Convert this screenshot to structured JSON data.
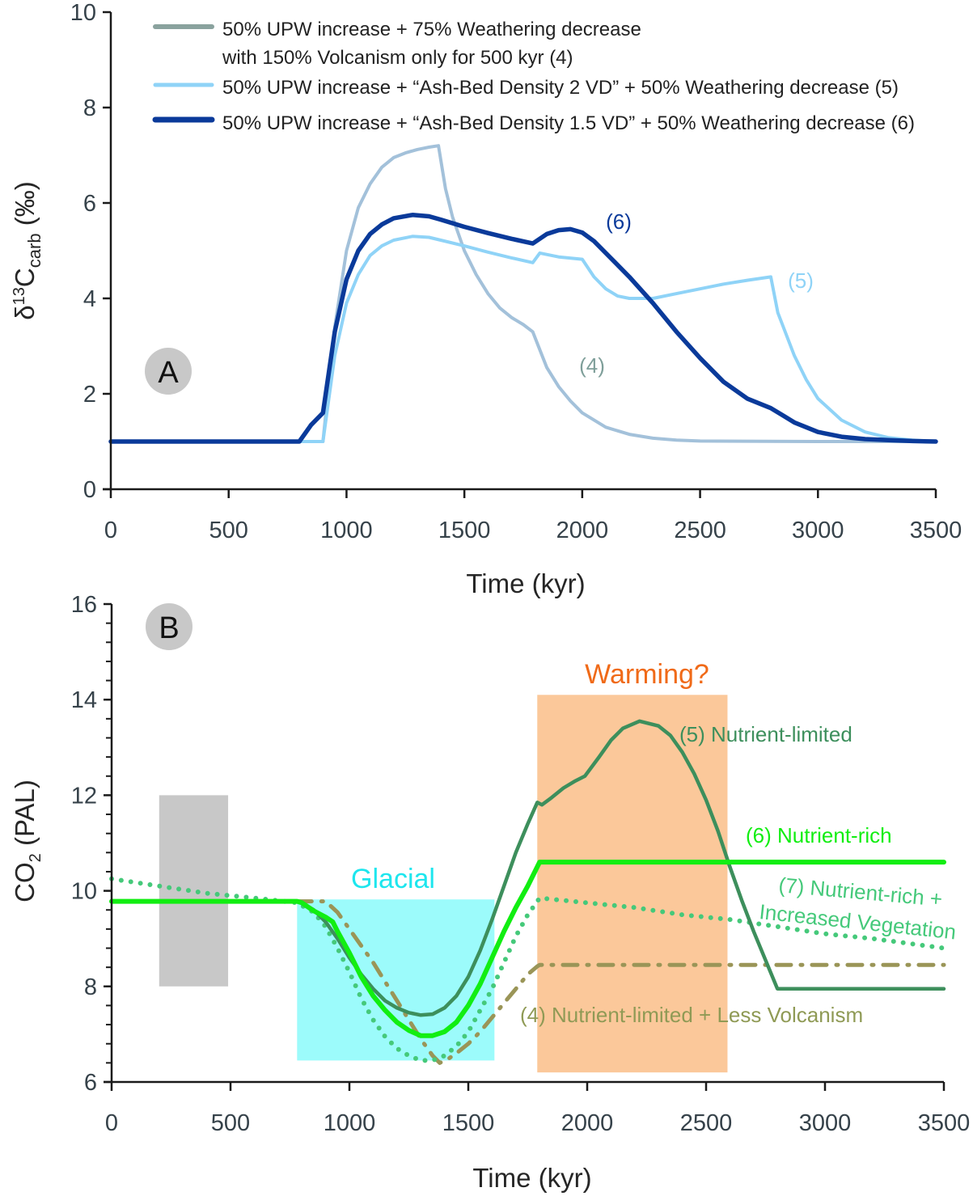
{
  "chart_data": [
    {
      "panel": "A",
      "type": "line",
      "xlabel": "Time (kyr)",
      "ylabel_main": "δ",
      "ylabel_sup": "13",
      "ylabel_c": "C",
      "ylabel_sub": "carb",
      "ylabel_unit": " (‰)",
      "xlim": [
        0,
        3500
      ],
      "ylim": [
        0,
        10
      ],
      "xticks": [
        0,
        500,
        1000,
        1500,
        2000,
        2500,
        3000,
        3500
      ],
      "yticks": [
        0,
        2,
        4,
        6,
        8,
        10
      ],
      "grid": false,
      "legend_position": "top",
      "series": [
        {
          "name": "50% UPW increase + 75% Weathering decrease with 150% Volcanism only for 500 kyr (4)",
          "legend_line1": "50% UPW increase + 75% Weathering decrease",
          "legend_line2": "with 150% Volcanism only for 500 kyr (4)",
          "legend_color": "#8aa29e",
          "color": "#a3c1da",
          "label": "(4)",
          "label_color": "#7f9f9a",
          "x": [
            0,
            800,
            900,
            950,
            1000,
            1050,
            1100,
            1150,
            1200,
            1250,
            1300,
            1350,
            1390,
            1420,
            1450,
            1500,
            1550,
            1600,
            1650,
            1700,
            1750,
            1790,
            1810,
            1850,
            1900,
            1950,
            2000,
            2100,
            2200,
            2300,
            2400,
            2500,
            3000,
            3500
          ],
          "y": [
            1.0,
            1.0,
            1.0,
            3.4,
            5.0,
            5.9,
            6.4,
            6.75,
            6.95,
            7.05,
            7.12,
            7.17,
            7.2,
            6.3,
            5.7,
            5.0,
            4.5,
            4.1,
            3.8,
            3.6,
            3.45,
            3.3,
            3.05,
            2.55,
            2.15,
            1.85,
            1.6,
            1.3,
            1.15,
            1.07,
            1.03,
            1.01,
            1.0,
            1.0
          ]
        },
        {
          "name": "50% UPW increase + “Ash-Bed Density 2 VD” + 50% Weathering decrease (5)",
          "legend_line1": "50% UPW increase + “Ash-Bed Density 2 VD” + 50% Weathering decrease (5)",
          "color": "#8fd3f7",
          "legend_color": "#8fd3f7",
          "label": "(5)",
          "label_color": "#8fd3f7",
          "x": [
            0,
            800,
            900,
            950,
            1000,
            1050,
            1100,
            1150,
            1200,
            1280,
            1350,
            1400,
            1500,
            1600,
            1700,
            1790,
            1820,
            1900,
            2000,
            2050,
            2100,
            2150,
            2200,
            2300,
            2400,
            2500,
            2600,
            2700,
            2800,
            2830,
            2900,
            2950,
            3000,
            3100,
            3200,
            3300,
            3400,
            3500
          ],
          "y": [
            1.0,
            1.0,
            1.0,
            2.8,
            3.9,
            4.5,
            4.9,
            5.1,
            5.22,
            5.3,
            5.28,
            5.22,
            5.1,
            4.97,
            4.85,
            4.75,
            4.95,
            4.87,
            4.82,
            4.45,
            4.2,
            4.05,
            4.0,
            4.0,
            4.1,
            4.2,
            4.3,
            4.38,
            4.45,
            3.7,
            2.8,
            2.3,
            1.9,
            1.45,
            1.2,
            1.08,
            1.03,
            1.0
          ]
        },
        {
          "name": "50% UPW increase + “Ash-Bed Density 1.5 VD” + 50% Weathering decrease (6)",
          "legend_line1": "50% UPW increase + “Ash-Bed Density 1.5 VD” + 50% Weathering decrease (6)",
          "color": "#0a3a9a",
          "legend_color": "#0a3a9a",
          "label": "(6)",
          "label_color": "#0a3a9a",
          "x": [
            0,
            800,
            850,
            900,
            950,
            1000,
            1050,
            1100,
            1150,
            1200,
            1280,
            1350,
            1400,
            1500,
            1600,
            1700,
            1790,
            1850,
            1900,
            1950,
            2000,
            2050,
            2100,
            2200,
            2300,
            2400,
            2500,
            2600,
            2700,
            2800,
            2850,
            2900,
            3000,
            3100,
            3200,
            3300,
            3400,
            3500
          ],
          "y": [
            1.0,
            1.0,
            1.35,
            1.6,
            3.3,
            4.4,
            5.0,
            5.35,
            5.55,
            5.68,
            5.75,
            5.72,
            5.65,
            5.5,
            5.37,
            5.25,
            5.15,
            5.35,
            5.43,
            5.45,
            5.38,
            5.2,
            4.95,
            4.45,
            3.9,
            3.3,
            2.75,
            2.25,
            1.9,
            1.7,
            1.55,
            1.4,
            1.2,
            1.1,
            1.05,
            1.03,
            1.01,
            1.0
          ]
        }
      ],
      "badge": "A"
    },
    {
      "panel": "B",
      "type": "line",
      "xlabel": "Time (kyr)",
      "ylabel_main": "CO",
      "ylabel_sub": "2",
      "ylabel_unit": " (PAL)",
      "xlim": [
        0,
        3500
      ],
      "ylim": [
        6,
        16
      ],
      "xticks": [
        0,
        500,
        1000,
        1500,
        2000,
        2500,
        3000,
        3500
      ],
      "yticks": [
        6,
        8,
        10,
        12,
        14,
        16
      ],
      "grid": false,
      "badge": "B",
      "shaded_regions": [
        {
          "name": "unlabeled-grey",
          "x": [
            200,
            490
          ],
          "y": [
            8.0,
            12.0
          ],
          "color": "#c8c8c8",
          "label": ""
        },
        {
          "name": "glacial",
          "x": [
            780,
            1610
          ],
          "y": [
            6.45,
            9.82
          ],
          "color": "#9cfbfb",
          "label": "Glacial",
          "label_color": "#1de6ee"
        },
        {
          "name": "warming",
          "x": [
            1790,
            2590
          ],
          "y": [
            6.2,
            14.1
          ],
          "color": "#fbc89a",
          "label": "Warming?",
          "label_color": "#f06a18"
        }
      ],
      "series": [
        {
          "name": "(5) Nutrient-limited",
          "color": "#3d8f5c",
          "style": "solid",
          "x": [
            0,
            780,
            800,
            850,
            900,
            950,
            1000,
            1050,
            1100,
            1150,
            1200,
            1250,
            1300,
            1350,
            1400,
            1450,
            1500,
            1550,
            1600,
            1650,
            1700,
            1750,
            1790,
            1810,
            1850,
            1900,
            1950,
            1990,
            2050,
            2100,
            2150,
            2220,
            2300,
            2350,
            2400,
            2450,
            2500,
            2550,
            2600,
            2650,
            2700,
            2750,
            2800,
            3500
          ],
          "y": [
            9.78,
            9.78,
            9.75,
            9.6,
            9.35,
            9.0,
            8.6,
            8.25,
            7.95,
            7.7,
            7.55,
            7.45,
            7.4,
            7.42,
            7.55,
            7.8,
            8.2,
            8.75,
            9.4,
            10.1,
            10.8,
            11.4,
            11.85,
            11.8,
            11.95,
            12.15,
            12.3,
            12.4,
            12.8,
            13.15,
            13.4,
            13.55,
            13.45,
            13.25,
            12.9,
            12.45,
            11.9,
            11.25,
            10.5,
            9.8,
            9.15,
            8.55,
            7.95,
            7.95
          ]
        },
        {
          "name": "(6) Nutrient-rich",
          "color": "#12ee12",
          "style": "solid",
          "x": [
            0,
            780,
            800,
            850,
            900,
            930,
            950,
            1000,
            1050,
            1100,
            1150,
            1200,
            1250,
            1300,
            1350,
            1400,
            1450,
            1500,
            1550,
            1600,
            1650,
            1700,
            1750,
            1800,
            3500
          ],
          "y": [
            9.78,
            9.78,
            9.75,
            9.58,
            9.45,
            9.35,
            9.15,
            8.7,
            8.2,
            7.8,
            7.5,
            7.25,
            7.08,
            6.97,
            6.97,
            7.05,
            7.25,
            7.6,
            8.05,
            8.6,
            9.15,
            9.65,
            10.1,
            10.6,
            10.6
          ]
        },
        {
          "name": "(7) Nutrient-rich + Increased Vegetation",
          "color": "#45c97a",
          "style": "dotted",
          "x": [
            0,
            200,
            400,
            600,
            780,
            850,
            900,
            950,
            1000,
            1050,
            1100,
            1150,
            1200,
            1250,
            1300,
            1350,
            1400,
            1450,
            1500,
            1550,
            1600,
            1650,
            1700,
            1750,
            1800,
            2000,
            2200,
            2400,
            2600,
            2800,
            3000,
            3200,
            3500
          ],
          "y": [
            10.25,
            10.1,
            9.95,
            9.85,
            9.75,
            9.55,
            9.25,
            8.8,
            8.3,
            7.75,
            7.3,
            6.95,
            6.7,
            6.55,
            6.45,
            6.45,
            6.55,
            6.75,
            7.05,
            7.5,
            7.95,
            8.5,
            9.05,
            9.5,
            9.85,
            9.75,
            9.65,
            9.5,
            9.4,
            9.25,
            9.1,
            9.0,
            8.8
          ]
        },
        {
          "name": "(4) Nutrient-limited + Less Volcanism",
          "color": "#9a9557",
          "style": "dash-dot",
          "x": [
            780,
            900,
            950,
            1000,
            1050,
            1100,
            1150,
            1200,
            1250,
            1300,
            1350,
            1380,
            1420,
            1450,
            1500,
            1550,
            1600,
            1650,
            1700,
            1750,
            1790,
            1800,
            3500
          ],
          "y": [
            9.78,
            9.78,
            9.55,
            9.2,
            8.85,
            8.5,
            8.1,
            7.7,
            7.3,
            6.9,
            6.55,
            6.4,
            6.5,
            6.6,
            6.8,
            7.05,
            7.35,
            7.65,
            7.95,
            8.25,
            8.42,
            8.45,
            8.45
          ]
        }
      ],
      "annotations": [
        {
          "text": "(5) Nutrient-limited",
          "color": "#3d8f5c"
        },
        {
          "text": "(6) Nutrient-rich",
          "color": "#12ee12"
        },
        {
          "text": "(7) Nutrient-rich +",
          "color": "#45c97a"
        },
        {
          "text": "Increased Vegetation",
          "color": "#45c97a"
        },
        {
          "text": "(4) Nutrient-limited + Less Volcanism",
          "color": "#8f9a55"
        }
      ]
    }
  ]
}
